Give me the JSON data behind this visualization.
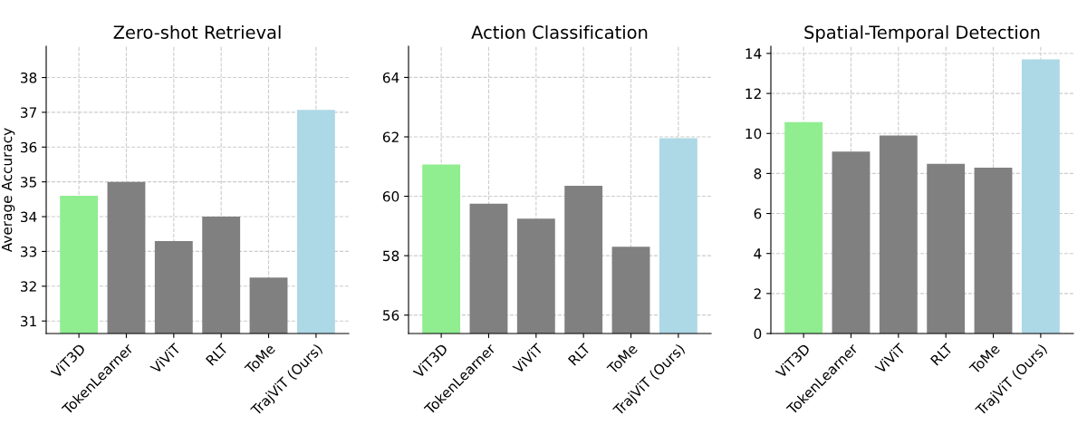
{
  "chart_data": [
    {
      "type": "bar",
      "title": "Zero-shot Retrieval",
      "ylabel": "Average Accuracy",
      "categories": [
        "ViT3D",
        "TokenLearner",
        "ViViT",
        "RLT",
        "ToMe",
        "TrajViT (Ours)"
      ],
      "values": [
        34.6,
        35.0,
        33.3,
        34.0,
        32.25,
        37.07
      ],
      "colors": [
        "#90ee90",
        "#808080",
        "#808080",
        "#808080",
        "#808080",
        "#add8e6"
      ],
      "ylim": [
        30.64,
        38.9
      ],
      "yticks": [
        31,
        32,
        33,
        34,
        35,
        36,
        37,
        38
      ],
      "grid": true
    },
    {
      "type": "bar",
      "title": "Action Classification",
      "categories": [
        "ViT3D",
        "TokenLearner",
        "ViViT",
        "RLT",
        "ToMe",
        "TrajViT (Ours)"
      ],
      "values": [
        61.07,
        59.75,
        59.25,
        60.35,
        58.3,
        61.95
      ],
      "colors": [
        "#90ee90",
        "#808080",
        "#808080",
        "#808080",
        "#808080",
        "#add8e6"
      ],
      "ylim": [
        55.38,
        65.05
      ],
      "yticks": [
        56,
        58,
        60,
        62,
        64
      ],
      "grid": true
    },
    {
      "type": "bar",
      "title": "Spatial-Temporal Detection",
      "categories": [
        "ViT3D",
        "TokenLearner",
        "ViViT",
        "RLT",
        "ToMe",
        "TrajViT (Ours)"
      ],
      "values": [
        10.57,
        9.09,
        9.9,
        8.48,
        8.29,
        13.7
      ],
      "colors": [
        "#90ee90",
        "#808080",
        "#808080",
        "#808080",
        "#808080",
        "#add8e6"
      ],
      "ylim": [
        0,
        14.36
      ],
      "yticks": [
        0,
        2,
        4,
        6,
        8,
        10,
        12,
        14
      ],
      "grid": true
    }
  ]
}
